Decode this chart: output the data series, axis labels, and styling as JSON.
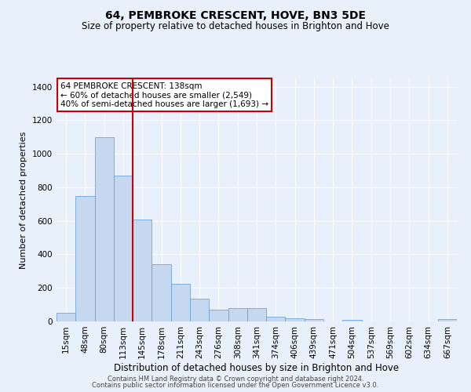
{
  "title": "64, PEMBROKE CRESCENT, HOVE, BN3 5DE",
  "subtitle": "Size of property relative to detached houses in Brighton and Hove",
  "xlabel": "Distribution of detached houses by size in Brighton and Hove",
  "ylabel": "Number of detached properties",
  "footer1": "Contains HM Land Registry data © Crown copyright and database right 2024.",
  "footer2": "Contains public sector information licensed under the Open Government Licence v3.0.",
  "categories": [
    "15sqm",
    "48sqm",
    "80sqm",
    "113sqm",
    "145sqm",
    "178sqm",
    "211sqm",
    "243sqm",
    "276sqm",
    "308sqm",
    "341sqm",
    "374sqm",
    "406sqm",
    "439sqm",
    "471sqm",
    "504sqm",
    "537sqm",
    "569sqm",
    "602sqm",
    "634sqm",
    "667sqm"
  ],
  "values": [
    52,
    750,
    1100,
    870,
    610,
    340,
    225,
    135,
    70,
    80,
    80,
    30,
    20,
    12,
    0,
    10,
    0,
    0,
    0,
    0,
    15
  ],
  "bar_color": "#c5d8f0",
  "bar_edge_color": "#5b9bd5",
  "red_line_x": 4.0,
  "annotation_text": "64 PEMBROKE CRESCENT: 138sqm\n← 60% of detached houses are smaller (2,549)\n40% of semi-detached houses are larger (1,693) →",
  "annotation_box_color": "#ffffff",
  "annotation_box_edge_color": "#cc0000",
  "red_line_color": "#cc0000",
  "bg_color": "#e8f0fb",
  "grid_color": "#ffffff",
  "ylim": [
    0,
    1450
  ],
  "yticks": [
    0,
    200,
    400,
    600,
    800,
    1000,
    1200,
    1400
  ],
  "title_fontsize": 10,
  "subtitle_fontsize": 8.5,
  "ylabel_fontsize": 8,
  "xlabel_fontsize": 8.5,
  "tick_fontsize": 7.5,
  "footer_fontsize": 6,
  "annot_fontsize": 7.5
}
